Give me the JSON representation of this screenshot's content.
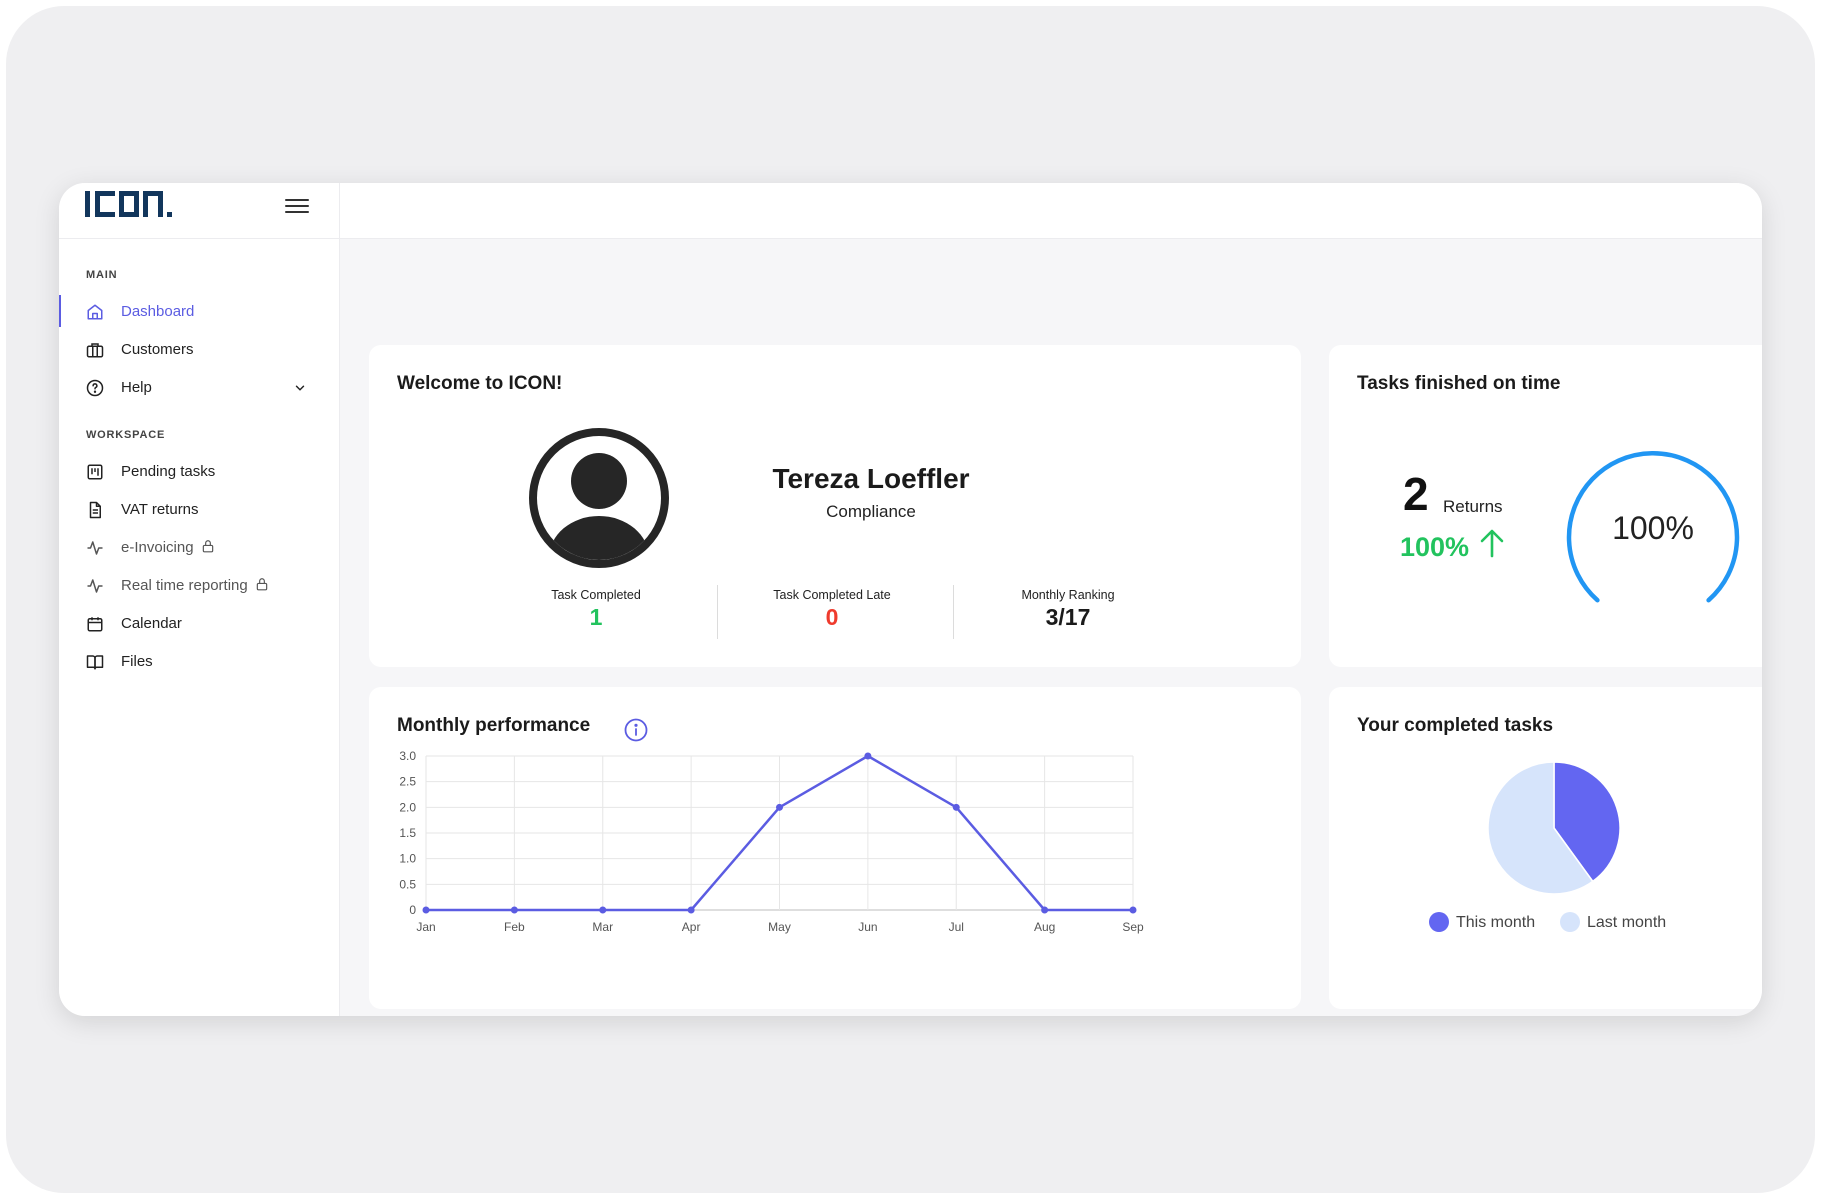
{
  "brand": {
    "logo_text": "ICON."
  },
  "sidebar": {
    "sections": [
      {
        "label": "MAIN"
      },
      {
        "label": "WORKSPACE"
      }
    ],
    "items": [
      {
        "label": "Dashboard",
        "icon": "home-icon"
      },
      {
        "label": "Customers",
        "icon": "briefcase-icon"
      },
      {
        "label": "Help",
        "icon": "help-circle-icon"
      },
      {
        "label": "Pending tasks",
        "icon": "kanban-icon"
      },
      {
        "label": "VAT returns",
        "icon": "document-icon"
      },
      {
        "label": "e-Invoicing",
        "icon": "activity-icon"
      },
      {
        "label": "Real time reporting",
        "icon": "activity-icon"
      },
      {
        "label": "Calendar",
        "icon": "calendar-icon"
      },
      {
        "label": "Files",
        "icon": "book-icon"
      }
    ]
  },
  "welcome": {
    "title": "Welcome to ICON!",
    "user_name": "Tereza Loeffler",
    "role": "Compliance",
    "stats": [
      {
        "label": "Task Completed",
        "value": "1",
        "color": "#22c35e"
      },
      {
        "label": "Task Completed Late",
        "value": "0",
        "color": "#ef3b2d"
      },
      {
        "label": "Monthly Ranking",
        "value": "3/17",
        "color": "#1b1b1b"
      }
    ]
  },
  "tasks_on_time": {
    "title": "Tasks finished on time",
    "count": "2",
    "count_label": "Returns",
    "change": "100%",
    "change_color": "#22c35e",
    "gauge_text": "100%",
    "gauge_value": 1.0
  },
  "colors": {
    "accent": "#5b5ce2",
    "gauge": "#2196f3",
    "pie_this": "#6366f1",
    "pie_last": "#d6e4fb"
  },
  "chart_data": [
    {
      "type": "line",
      "title": "Monthly performance",
      "categories": [
        "Jan",
        "Feb",
        "Mar",
        "Apr",
        "May",
        "Jun",
        "Jul",
        "Aug",
        "Sep"
      ],
      "values": [
        0,
        0,
        0,
        0,
        2,
        3,
        2,
        0,
        0
      ],
      "yticks": [
        "0",
        "0.5",
        "1.0",
        "1.5",
        "2.0",
        "2.5",
        "3.0"
      ],
      "ylim": [
        0,
        3
      ],
      "grid": true
    },
    {
      "type": "pie",
      "title": "Your completed tasks",
      "labels": [
        "This month",
        "Last month"
      ],
      "values": [
        40,
        60
      ],
      "legend": "bottom"
    }
  ]
}
